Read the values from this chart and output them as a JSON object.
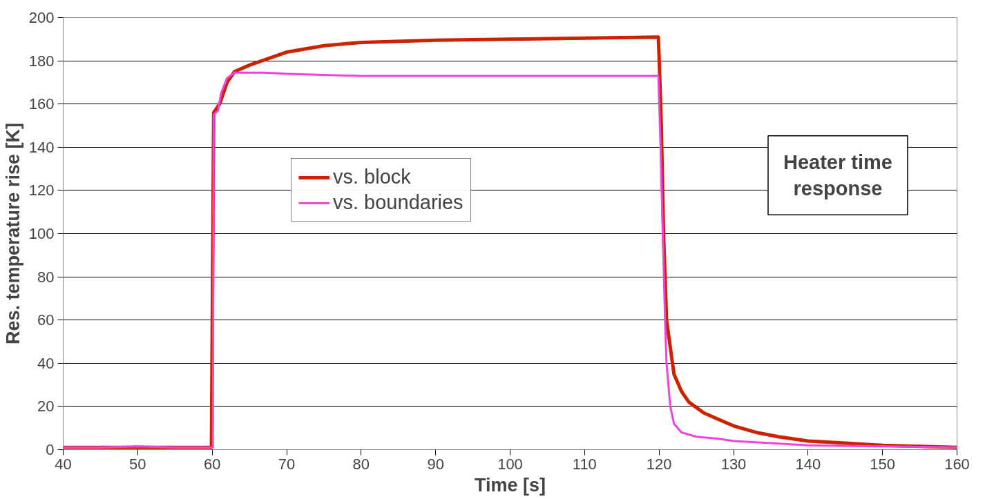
{
  "chart_data": {
    "type": "line",
    "xlabel": "Time [s]",
    "ylabel": "Res. temperature rise [K]",
    "xlim": [
      40,
      160
    ],
    "ylim": [
      0,
      200
    ],
    "xticks": [
      40,
      50,
      60,
      70,
      80,
      90,
      100,
      110,
      120,
      130,
      140,
      150,
      160
    ],
    "yticks": [
      0,
      20,
      40,
      60,
      80,
      100,
      120,
      140,
      160,
      180,
      200
    ],
    "grid": "y",
    "legend": "left",
    "line_style": "solid",
    "marker": "none",
    "annotations": [
      "Heater time response"
    ],
    "series": [
      {
        "name": "vs. block",
        "color": "#cc2200",
        "x": [
          40,
          45,
          50,
          55,
          59.9,
          60.2,
          61,
          62,
          63,
          65,
          70,
          75,
          80,
          90,
          100,
          110,
          119.9,
          120,
          120.3,
          120.6,
          121,
          122,
          123,
          124,
          126,
          128,
          130,
          133,
          136,
          140,
          145,
          150,
          160
        ],
        "values": [
          1,
          1,
          1,
          1,
          1,
          156,
          160,
          170,
          175,
          178,
          184,
          187,
          188.5,
          189.5,
          190,
          190.5,
          191,
          182,
          150,
          100,
          60,
          35,
          27,
          22,
          17,
          14,
          11,
          8,
          6,
          4,
          3,
          2,
          1
        ]
      },
      {
        "name": "vs. boundaries",
        "color": "#ee44dd",
        "x": [
          40,
          45,
          50,
          55,
          60.1,
          60.2,
          60.8,
          61.2,
          62,
          63,
          67,
          70,
          80,
          90,
          100,
          110,
          119.9,
          120.2,
          120.5,
          120.8,
          121,
          121.5,
          122,
          123,
          125,
          128,
          130,
          135,
          140,
          150,
          160
        ],
        "values": [
          1,
          1,
          1.5,
          1,
          1,
          155,
          157,
          165,
          172,
          174.5,
          174.5,
          174,
          173,
          173,
          173,
          173,
          173,
          140,
          100,
          60,
          40,
          20,
          12,
          8,
          6,
          5,
          4,
          3,
          2,
          1.5,
          1
        ]
      }
    ]
  }
}
